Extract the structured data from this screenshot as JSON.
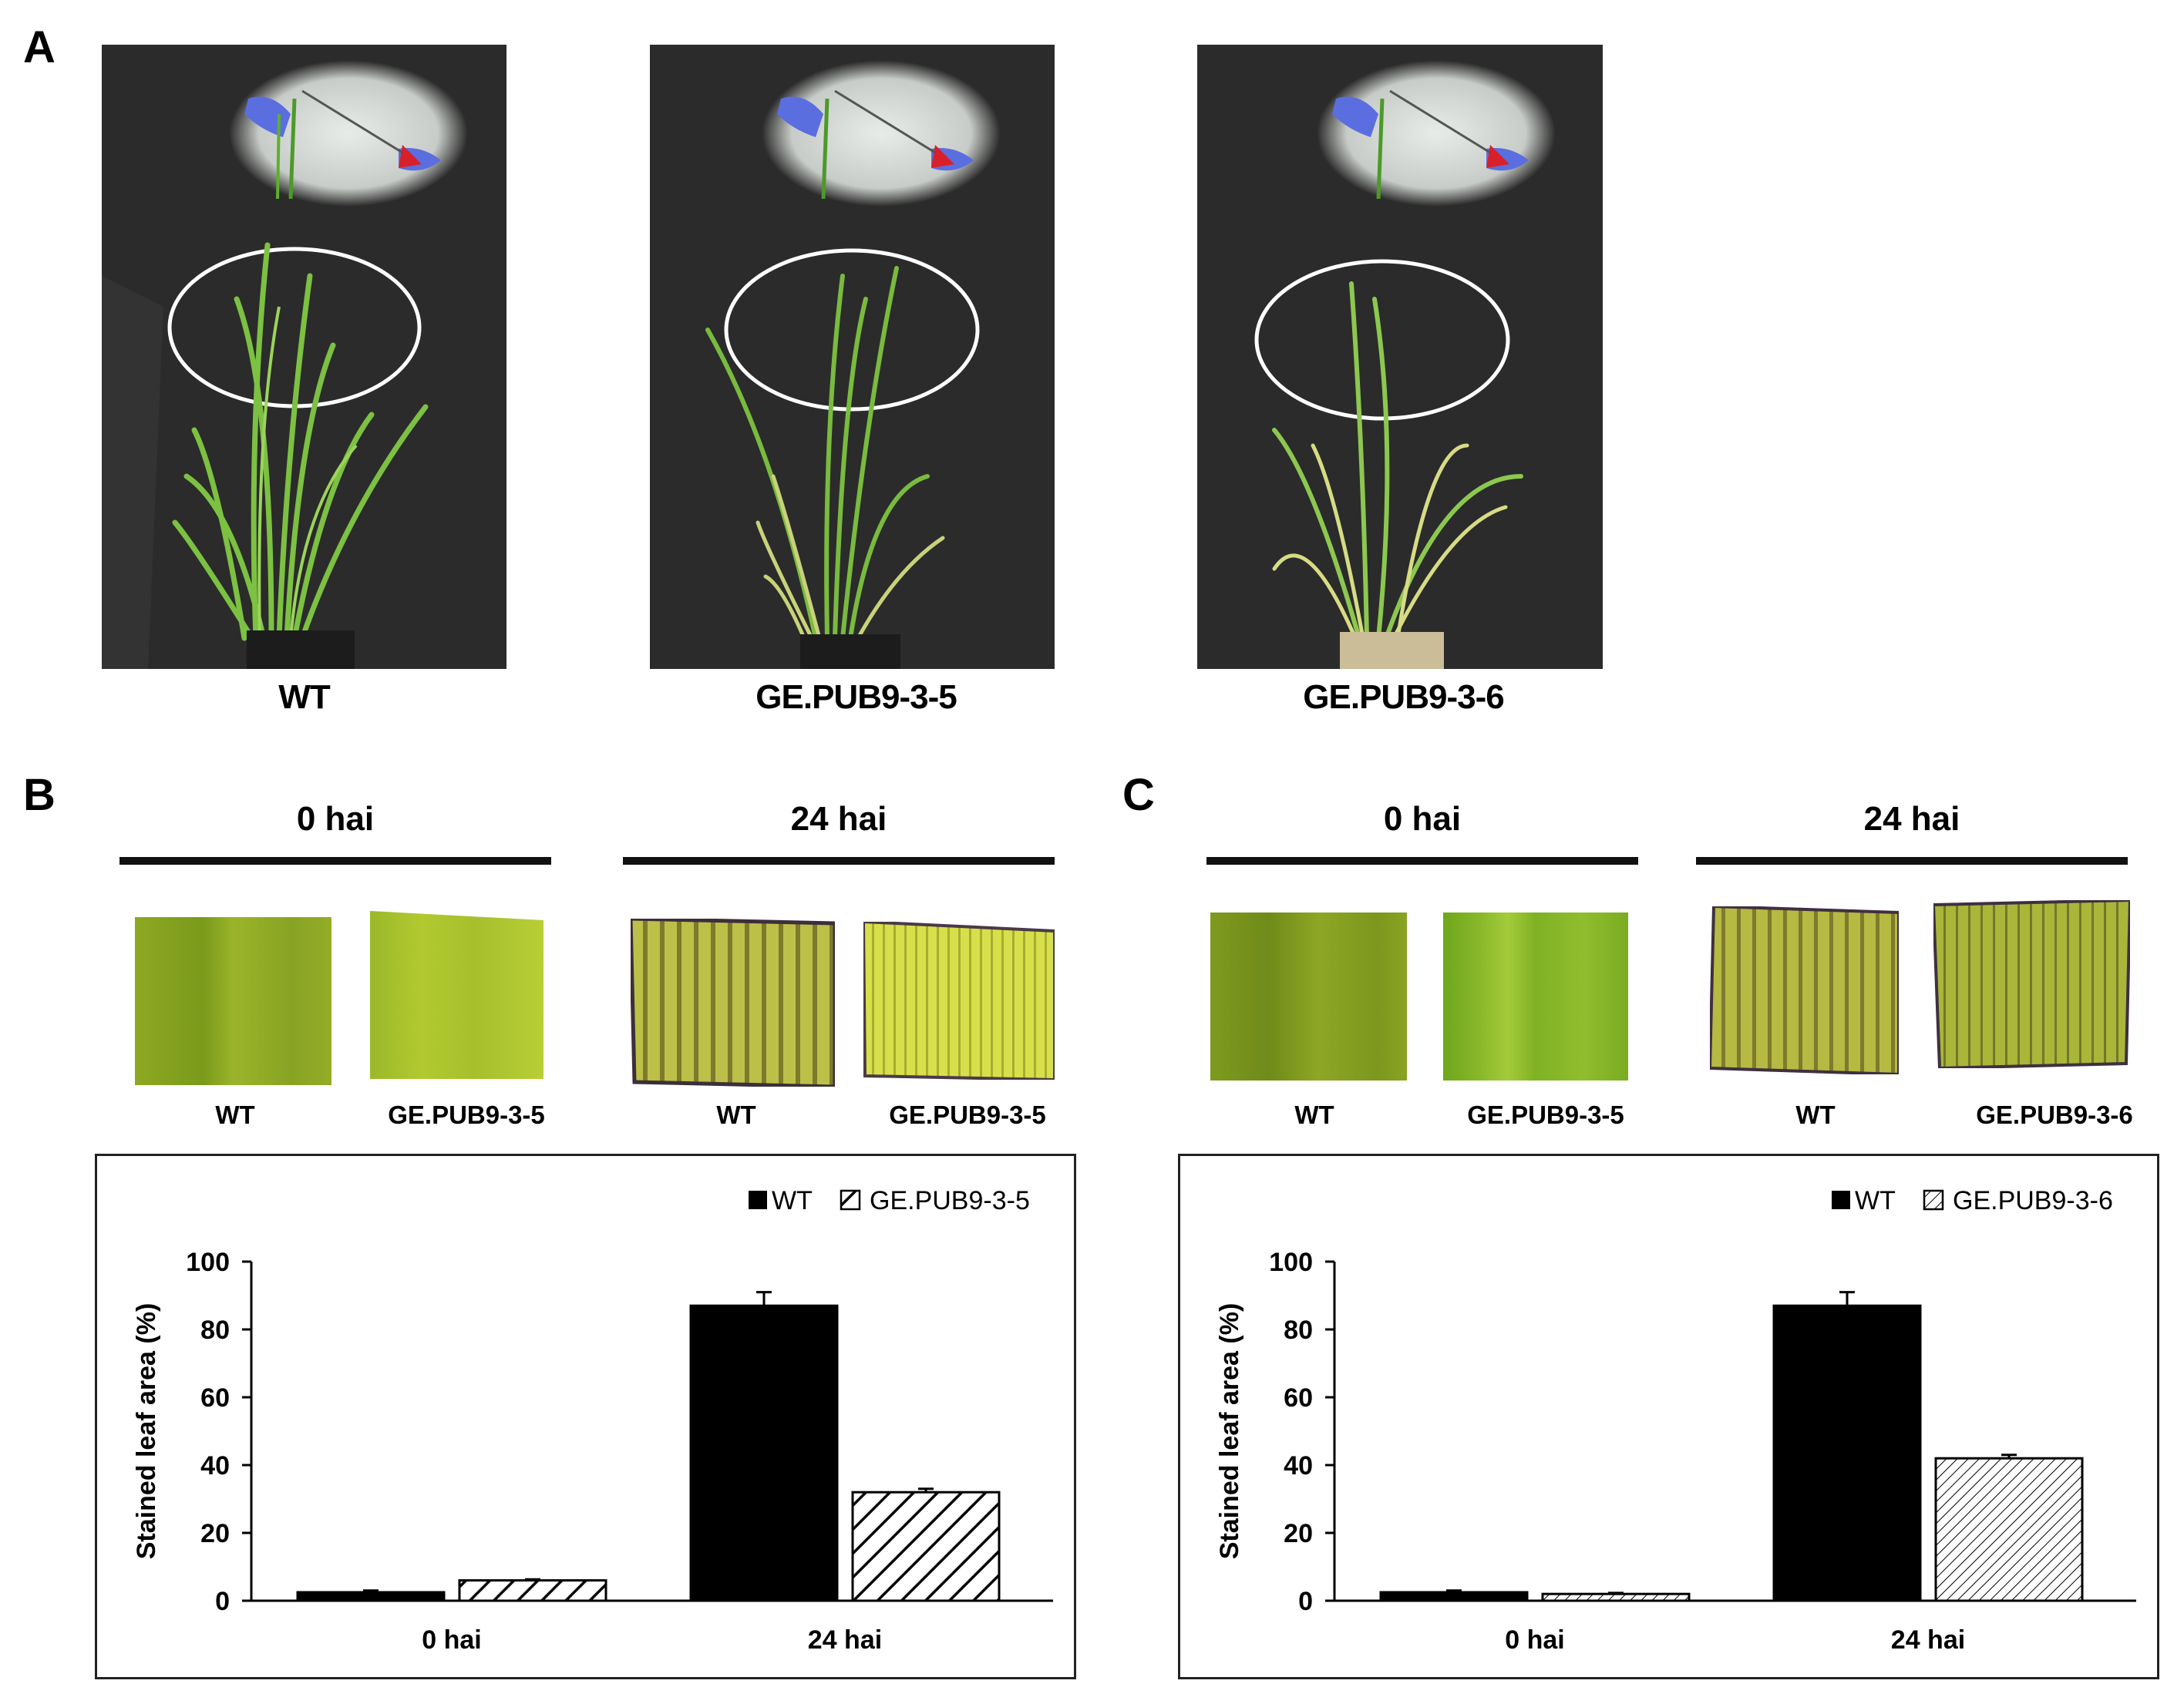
{
  "panels": {
    "a": {
      "letter": "A",
      "genotypes": [
        "WT",
        "GE.PUB9-3-5",
        "GE.PUB9-3-6"
      ]
    },
    "b": {
      "letter": "B",
      "time_labels": [
        "0 hai",
        "24 hai"
      ],
      "leaf_labels": [
        "WT",
        "GE.PUB9-3-5",
        "WT",
        "GE.PUB9-3-5"
      ]
    },
    "c": {
      "letter": "C",
      "time_labels": [
        "0 hai",
        "24 hai"
      ],
      "leaf_labels": [
        "WT",
        "GE.PUB9-3-5",
        "WT",
        "GE.PUB9-3-6"
      ]
    }
  },
  "chart_data": [
    {
      "type": "bar",
      "categories": [
        "0 hai",
        "24 hai"
      ],
      "series": [
        {
          "name": "WT",
          "values": [
            2.5,
            87
          ],
          "errors": [
            0.5,
            4
          ],
          "fill": "solid",
          "color": "#000000"
        },
        {
          "name": "GE.PUB9-3-5",
          "values": [
            6,
            32
          ],
          "errors": [
            0.3,
            1
          ],
          "fill": "hatched",
          "color": "#000000"
        }
      ],
      "ylabel": "Stained leaf area (%)",
      "ylim": [
        0,
        100
      ],
      "yticks": [
        0,
        20,
        40,
        60,
        80,
        100
      ],
      "grid": false,
      "legend": "top-right"
    },
    {
      "type": "bar",
      "categories": [
        "0 hai",
        "24 hai"
      ],
      "series": [
        {
          "name": "WT",
          "values": [
            2.5,
            87
          ],
          "errors": [
            0.5,
            4
          ],
          "fill": "solid",
          "color": "#000000"
        },
        {
          "name": "GE.PUB9-3-6",
          "values": [
            2,
            42
          ],
          "errors": [
            0.3,
            1
          ],
          "fill": "fine-hatched",
          "color": "#000000"
        }
      ],
      "ylabel": "Stained leaf area (%)",
      "ylim": [
        0,
        100
      ],
      "yticks": [
        0,
        20,
        40,
        60,
        80,
        100
      ],
      "grid": false,
      "legend": "top-right"
    }
  ]
}
